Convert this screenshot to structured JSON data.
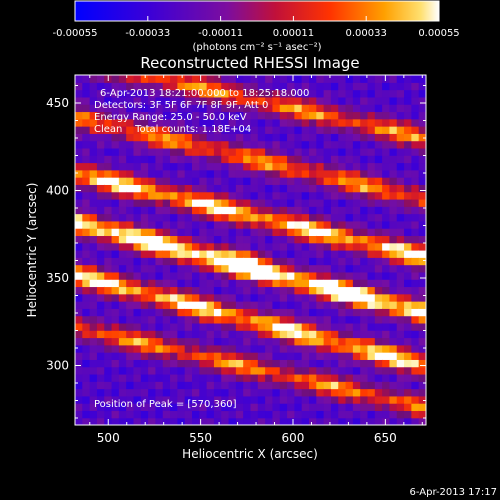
{
  "chart_data": {
    "type": "heatmap",
    "title": "Reconstructed RHESSI Image",
    "xlabel": "Heliocentric X (arcsec)",
    "ylabel": "Heliocentric Y (arcsec)",
    "xlim": [
      482,
      672
    ],
    "ylim": [
      266,
      466
    ],
    "xticks": [
      500,
      550,
      600,
      650
    ],
    "yticks": [
      300,
      350,
      400,
      450
    ],
    "colorbar": {
      "range": [
        -0.00055,
        0.00055
      ],
      "tick_labels": [
        "-0.00055",
        "-0.00033",
        "-0.00011",
        "0.00011",
        "0.00033",
        "0.00055"
      ],
      "units_label": "(photons cm⁻² s⁻¹ asec⁻²)"
    },
    "annotations": {
      "time_range": "6-Apr-2013 18:21:00.000 to 18:25:18.000",
      "detectors": "Detectors: 3F 5F 6F 7F 8F 9F, Att 0",
      "energy": "Energy Range: 25.0 - 50.0 keV",
      "clean": "Clean    Total counts: 1.18E+04",
      "peak": "Position of Peak = [570,360]"
    },
    "peak_position": [
      570,
      360
    ],
    "ridges": [
      {
        "y_at_left": 442,
        "y_at_right": 395,
        "amplitude": 0.6
      },
      {
        "y_at_left": 410,
        "y_at_right": 362,
        "amplitude": 0.8
      },
      {
        "y_at_left": 382,
        "y_at_right": 330,
        "amplitude": 1.0
      },
      {
        "y_at_left": 352,
        "y_at_right": 300,
        "amplitude": 0.8
      },
      {
        "y_at_left": 322,
        "y_at_right": 276,
        "amplitude": 0.6
      },
      {
        "y_at_left": 475,
        "y_at_right": 430,
        "amplitude": 0.6
      }
    ]
  },
  "footer": {
    "timestamp": "6-Apr-2013 17:17"
  }
}
